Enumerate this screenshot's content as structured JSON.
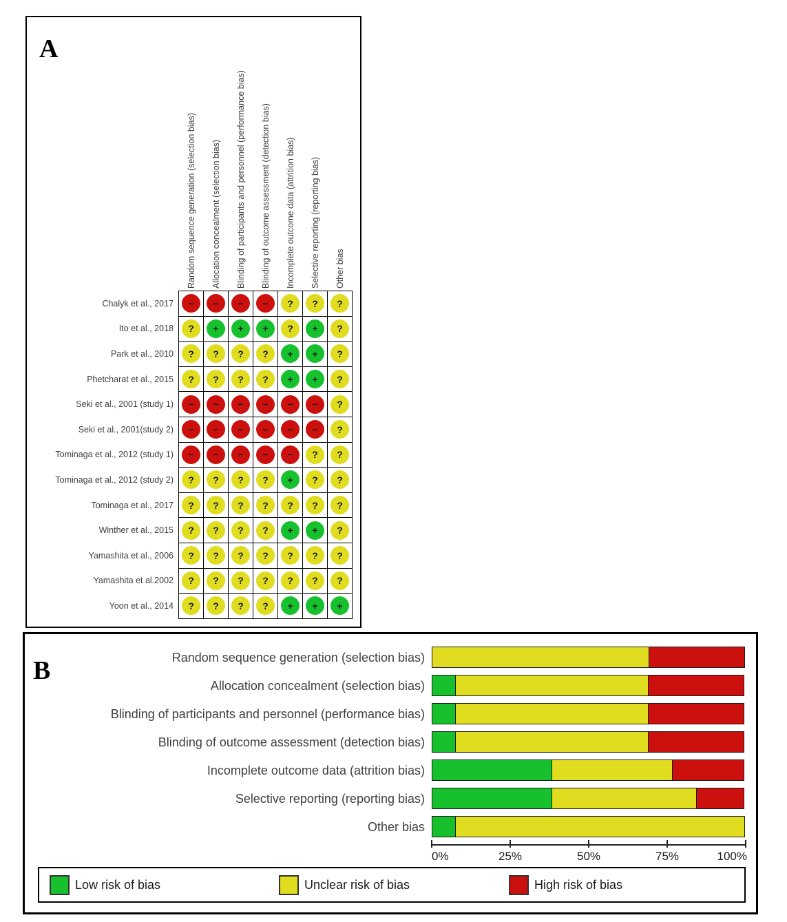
{
  "colors": {
    "low": "#17c12e",
    "unclear": "#e0dc20",
    "high": "#cb100d"
  },
  "symbols": {
    "low": "+",
    "unclear": "?",
    "high": "−"
  },
  "panel_a": {
    "label": "A",
    "columns": [
      "Random sequence generation (selection bias)",
      "Allocation concealment (selection bias)",
      "Blinding of participants and personnel (performance bias)",
      "Blinding of outcome assessment (detection bias)",
      "Incomplete outcome data (attrition bias)",
      "Selective reporting (reporting bias)",
      "Other bias"
    ],
    "rows": [
      {
        "study": "Chalyk et al., 2017",
        "judgements": [
          "high",
          "high",
          "high",
          "high",
          "unclear",
          "unclear",
          "unclear"
        ]
      },
      {
        "study": "Ito et al., 2018",
        "judgements": [
          "unclear",
          "low",
          "low",
          "low",
          "unclear",
          "low",
          "unclear"
        ]
      },
      {
        "study": "Park et al., 2010",
        "judgements": [
          "unclear",
          "unclear",
          "unclear",
          "unclear",
          "low",
          "low",
          "unclear"
        ]
      },
      {
        "study": "Phetcharat et al., 2015",
        "judgements": [
          "unclear",
          "unclear",
          "unclear",
          "unclear",
          "low",
          "low",
          "unclear"
        ]
      },
      {
        "study": "Seki et al., 2001 (study 1)",
        "judgements": [
          "high",
          "high",
          "high",
          "high",
          "high",
          "high",
          "unclear"
        ]
      },
      {
        "study": "Seki et al., 2001(study 2)",
        "judgements": [
          "high",
          "high",
          "high",
          "high",
          "high",
          "high",
          "unclear"
        ]
      },
      {
        "study": "Tominaga et al., 2012 (study 1)",
        "judgements": [
          "high",
          "high",
          "high",
          "high",
          "high",
          "unclear",
          "unclear"
        ]
      },
      {
        "study": "Tominaga et al., 2012 (study 2)",
        "judgements": [
          "unclear",
          "unclear",
          "unclear",
          "unclear",
          "low",
          "unclear",
          "unclear"
        ]
      },
      {
        "study": "Tominaga et al., 2017",
        "judgements": [
          "unclear",
          "unclear",
          "unclear",
          "unclear",
          "unclear",
          "unclear",
          "unclear"
        ]
      },
      {
        "study": "Winther et al., 2015",
        "judgements": [
          "unclear",
          "unclear",
          "unclear",
          "unclear",
          "low",
          "low",
          "unclear"
        ]
      },
      {
        "study": "Yamashita et al., 2006",
        "judgements": [
          "unclear",
          "unclear",
          "unclear",
          "unclear",
          "unclear",
          "unclear",
          "unclear"
        ]
      },
      {
        "study": "Yamashita et al.2002",
        "judgements": [
          "unclear",
          "unclear",
          "unclear",
          "unclear",
          "unclear",
          "unclear",
          "unclear"
        ]
      },
      {
        "study": "Yoon et al., 2014",
        "judgements": [
          "unclear",
          "unclear",
          "unclear",
          "unclear",
          "low",
          "low",
          "low"
        ]
      }
    ]
  },
  "panel_b": {
    "label": "B"
  },
  "chart_data": {
    "type": "bar",
    "orientation": "horizontal",
    "stacked": true,
    "categories": [
      "Random sequence generation (selection bias)",
      "Allocation concealment (selection bias)",
      "Blinding of participants and personnel (performance bias)",
      "Blinding of outcome assessment (detection bias)",
      "Incomplete outcome data (attrition bias)",
      "Selective reporting (reporting bias)",
      "Other bias"
    ],
    "series": [
      {
        "key": "low",
        "name": "Low risk of bias",
        "values": [
          0,
          7.7,
          7.7,
          7.7,
          38.5,
          38.5,
          7.7
        ]
      },
      {
        "key": "unclear",
        "name": "Unclear risk of bias",
        "values": [
          69.2,
          61.5,
          61.5,
          61.5,
          38.5,
          46.2,
          92.3
        ]
      },
      {
        "key": "high",
        "name": "High risk of bias",
        "values": [
          30.8,
          30.8,
          30.8,
          30.8,
          23.1,
          15.4,
          0
        ]
      }
    ],
    "xlim": [
      0,
      100
    ],
    "x_ticks": [
      "0%",
      "25%",
      "50%",
      "75%",
      "100%"
    ],
    "grid": false,
    "legend_position": "bottom",
    "legend": [
      {
        "key": "low",
        "label": "Low risk of bias"
      },
      {
        "key": "unclear",
        "label": "Unclear risk of bias"
      },
      {
        "key": "high",
        "label": "High risk of bias"
      }
    ]
  }
}
